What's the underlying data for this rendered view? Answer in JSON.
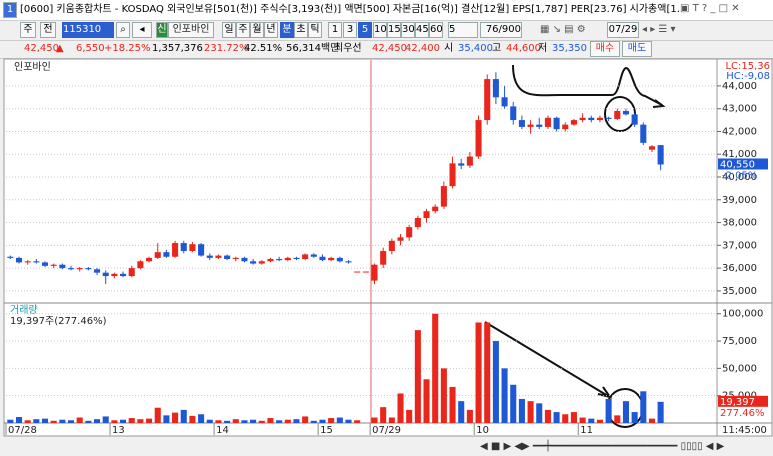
{
  "window": {
    "title": "[0600] 키움종합차트 - KOSDAQ 외국인보유[501(천)] 주식수[3,193(천)] 액면[500] 자본금[16(억)] 결산[12월] EPS[1,787] PER[23.76] 시가총액[1."
  },
  "toolbar": {
    "mode": "주",
    "scope": "전",
    "code": "115310",
    "badge": "신",
    "name": "인포바인",
    "periods": [
      "일",
      "주",
      "월",
      "년",
      "분",
      "초",
      "틱"
    ],
    "minutes": [
      "1",
      "3",
      "5",
      "10",
      "15",
      "30",
      "45",
      "60"
    ],
    "count": "5",
    "range": "76/900",
    "date": "07/29"
  },
  "quote": {
    "price": "42,450",
    "arrow": "▲",
    "change": "6,550",
    "change_rate": "+18.25%",
    "volume": "1,357,376",
    "volume_rate": "231.72%",
    "turnover": "42.51%",
    "amount": "56,314백만",
    "best": "최우선",
    "ask": "42,450",
    "bid": "42,400",
    "open_label": "시",
    "open": "35,400",
    "high_label": "고",
    "high": "44,600",
    "low_label": "저",
    "low": "35,350",
    "buy": "매수",
    "sell": "매도"
  },
  "chart_data": [
    {
      "type": "candlestick",
      "title": "인포바인",
      "lc_label": "LC:15,36",
      "hc_label": "HC:-9,08",
      "last_label": "40,550",
      "last_change_label": "-2.05%",
      "up_color": "#e8261c",
      "down_color": "#1f58d4",
      "grid": true,
      "ylim": [
        34600,
        45050
      ],
      "yticks": [
        {
          "value": 35000,
          "label": "35,000"
        },
        {
          "value": 36000,
          "label": "36,000"
        },
        {
          "value": 37000,
          "label": "37,000"
        },
        {
          "value": 38000,
          "label": "38,000"
        },
        {
          "value": 39000,
          "label": "39,000"
        },
        {
          "value": 40000,
          "label": "40,000"
        },
        {
          "value": 41000,
          "label": "41,000"
        },
        {
          "value": 42000,
          "label": "42,000"
        },
        {
          "value": 43000,
          "label": "43,000"
        },
        {
          "value": 44000,
          "label": "44,000"
        }
      ],
      "open": [
        36500,
        36450,
        36250,
        36300,
        36250,
        36100,
        36150,
        36000,
        35950,
        36000,
        35950,
        35800,
        35650,
        35750,
        35650,
        36000,
        36300,
        36450,
        36700,
        36500,
        37100,
        36750,
        37050,
        36550,
        36450,
        36550,
        36400,
        36450,
        36300,
        36200,
        36300,
        36400,
        36350,
        36450,
        36400,
        36600,
        36500,
        36350,
        36450,
        36300,
        35850,
        35850,
        35450,
        36150,
        36750,
        37200,
        37350,
        37800,
        38200,
        38500,
        38700,
        39600,
        40600,
        40500,
        40900,
        42500,
        44300,
        43500,
        43100,
        42500,
        42200,
        42300,
        42200,
        42600,
        42100,
        42300,
        42500,
        42600,
        42500,
        42600,
        42550,
        42900,
        42750,
        42300,
        41200,
        41400
      ],
      "high": [
        36550,
        36500,
        36350,
        36400,
        36300,
        36200,
        36200,
        36100,
        36050,
        36050,
        36000,
        35900,
        35800,
        35850,
        36100,
        36350,
        36500,
        37100,
        36800,
        37200,
        37200,
        37150,
        37100,
        36650,
        36600,
        36600,
        36500,
        36500,
        36400,
        36350,
        36450,
        36500,
        36500,
        36500,
        36650,
        36650,
        36600,
        36500,
        36500,
        36350,
        35850,
        35850,
        36200,
        36900,
        37300,
        37500,
        37900,
        38300,
        38600,
        38800,
        39800,
        40900,
        40800,
        41100,
        42700,
        44500,
        44600,
        44000,
        43300,
        42700,
        42500,
        42600,
        42700,
        42650,
        42400,
        42550,
        42800,
        42700,
        42700,
        42650,
        43000,
        43000,
        42800,
        42400,
        41400,
        41400
      ],
      "low": [
        36400,
        36200,
        36150,
        36200,
        36050,
        36000,
        35950,
        35900,
        35850,
        35900,
        35700,
        35300,
        35550,
        35600,
        35600,
        35950,
        36250,
        36400,
        36450,
        36450,
        36650,
        36700,
        36500,
        36350,
        36400,
        36350,
        36300,
        36250,
        36150,
        36150,
        36250,
        36300,
        36300,
        36350,
        36350,
        36450,
        36300,
        36300,
        36250,
        36200,
        35850,
        35850,
        35300,
        36000,
        36600,
        37000,
        37200,
        37700,
        38000,
        38400,
        38600,
        39500,
        40350,
        40400,
        40800,
        42300,
        43200,
        43000,
        42300,
        42100,
        41900,
        42100,
        42100,
        42000,
        42000,
        42250,
        42400,
        42400,
        42400,
        42450,
        42500,
        42700,
        42200,
        41400,
        41100,
        40300
      ],
      "close": [
        36450,
        36250,
        36300,
        36250,
        36100,
        36150,
        36000,
        35950,
        36000,
        35950,
        35800,
        35650,
        35750,
        35650,
        36000,
        36300,
        36450,
        36700,
        36500,
        37100,
        36750,
        37050,
        36550,
        36450,
        36550,
        36400,
        36450,
        36300,
        36200,
        36300,
        36400,
        36350,
        36450,
        36400,
        36600,
        36500,
        36350,
        36450,
        36300,
        36250,
        35850,
        35850,
        36150,
        36750,
        37200,
        37350,
        37800,
        38200,
        38500,
        38700,
        39600,
        40600,
        40500,
        40900,
        42500,
        44300,
        43500,
        43100,
        42500,
        42200,
        42300,
        42200,
        42600,
        42100,
        42300,
        42500,
        42600,
        42500,
        42600,
        42550,
        42900,
        42750,
        42300,
        41500,
        41350,
        40550
      ]
    },
    {
      "type": "bar",
      "title": "거래량",
      "subtitle": "19,397주(277.46%)",
      "last_label": "19,397",
      "last_rate_label": "277.46%",
      "time_label": "11:45:00",
      "grid": true,
      "ylim": [
        0,
        108000
      ],
      "yticks": [
        {
          "value": 25000,
          "label": "25,000"
        },
        {
          "value": 50000,
          "label": "50,000"
        },
        {
          "value": 75000,
          "label": "75,000"
        },
        {
          "value": 100000,
          "label": "100,000"
        }
      ],
      "categories": [
        "07/28",
        null,
        null,
        null,
        null,
        null,
        null,
        null,
        null,
        null,
        null,
        null,
        "13",
        null,
        null,
        null,
        null,
        null,
        null,
        null,
        null,
        null,
        null,
        null,
        "14",
        null,
        null,
        null,
        null,
        null,
        null,
        null,
        null,
        null,
        null,
        null,
        "15",
        null,
        null,
        null,
        null,
        null,
        "07/29",
        null,
        null,
        null,
        null,
        null,
        null,
        null,
        null,
        null,
        null,
        null,
        "10",
        null,
        null,
        null,
        null,
        null,
        null,
        null,
        null,
        null,
        null,
        null,
        "11",
        null,
        null,
        null,
        null,
        null,
        null,
        null,
        null,
        null
      ],
      "values": [
        3000,
        5500,
        2500,
        3500,
        4000,
        2000,
        3000,
        2500,
        5000,
        2000,
        3500,
        6000,
        2500,
        3000,
        4500,
        3500,
        4000,
        14000,
        7000,
        9500,
        12000,
        6500,
        8000,
        3000,
        2500,
        2000,
        3500,
        2500,
        3000,
        2000,
        4500,
        2500,
        3000,
        3500,
        6000,
        2000,
        3000,
        4500,
        5000,
        3000,
        2500,
        0,
        5000,
        14500,
        5000,
        27000,
        12000,
        85000,
        40000,
        100000,
        50000,
        33000,
        20000,
        12000,
        92000,
        92000,
        75000,
        50000,
        35000,
        22000,
        20000,
        18000,
        12000,
        10000,
        8000,
        10000,
        5000,
        4000,
        3000,
        22000,
        7000,
        20000,
        10000,
        29000,
        4000,
        19397
      ]
    }
  ]
}
